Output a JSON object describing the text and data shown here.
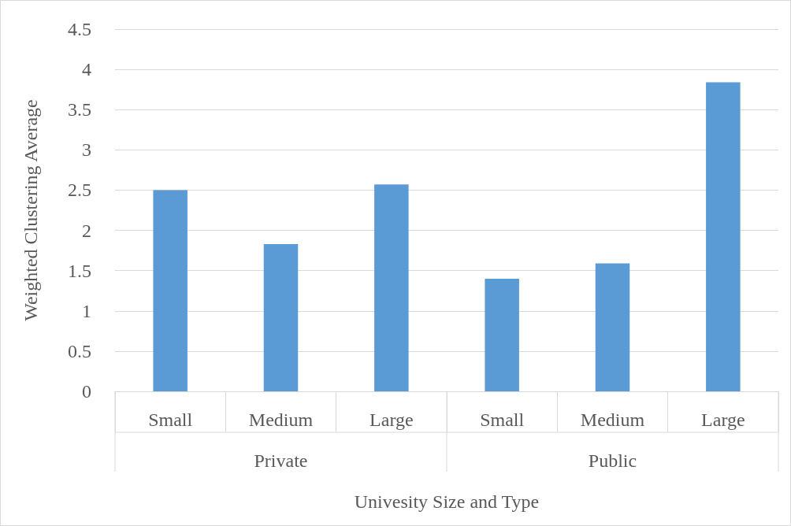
{
  "chart_data": {
    "type": "bar",
    "xlabel": "Univesity Size and Type",
    "ylabel": "Weighted Clustering Average",
    "categories": [
      "Small",
      "Medium",
      "Large",
      "Small",
      "Medium",
      "Large"
    ],
    "values": [
      2.5,
      1.83,
      2.57,
      1.4,
      1.59,
      3.84
    ],
    "color": "#5b9bd5",
    "ylim": [
      0,
      4.5
    ],
    "yticks": [
      0,
      0.5,
      1,
      1.5,
      2,
      2.5,
      3,
      3.5,
      4,
      4.5
    ],
    "grid": "y",
    "annotations": [
      "Private",
      "Public"
    ]
  }
}
